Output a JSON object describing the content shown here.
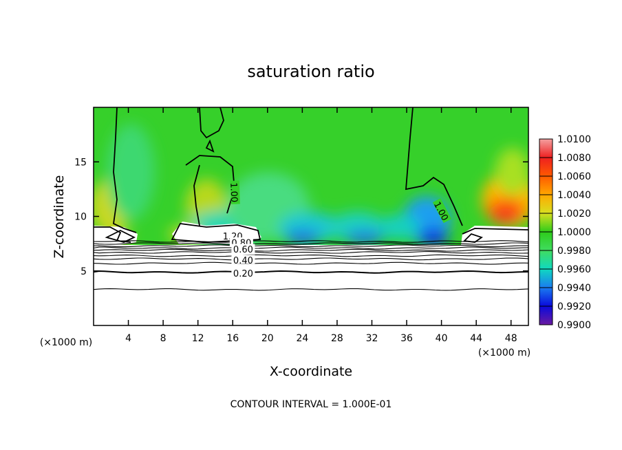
{
  "chart_data": {
    "type": "heatmap",
    "title": "saturation ratio",
    "xlabel": "X-coordinate",
    "ylabel": "Z-coordinate",
    "x_unit": "(×1000 m)",
    "z_unit": "(×1000 m)",
    "xlim": [
      0,
      50
    ],
    "ylim": [
      0,
      20
    ],
    "x_ticks": [
      4,
      8,
      12,
      16,
      20,
      24,
      28,
      32,
      36,
      40,
      44,
      48
    ],
    "y_ticks": [
      5,
      10,
      15
    ],
    "note": "CONTOUR INTERVAL = 1.000E-01",
    "colorbar": {
      "min": 0.99,
      "max": 1.01,
      "labels": [
        "1.0100",
        "1.0080",
        "1.0060",
        "1.0040",
        "1.0020",
        "1.0000",
        "0.9980",
        "0.9960",
        "0.9940",
        "0.9920",
        "0.9900"
      ],
      "colors": [
        "#f4a0a0",
        "#ee2020",
        "#ff5a00",
        "#ffa800",
        "#d8e020",
        "#2ecc1a",
        "#40dc60",
        "#10d8c0",
        "#1a7cf0",
        "#0a0adc",
        "#6a1aa0"
      ]
    },
    "contour_labels": [
      {
        "text": "1.00",
        "x": 16.2,
        "z": 12.2
      },
      {
        "text": "1.00",
        "x": 40.0,
        "z": 10.5
      },
      {
        "text": "1.20",
        "x": 16.0,
        "z": 8.2
      },
      {
        "text": "0.80",
        "x": 17.0,
        "z": 7.6
      },
      {
        "text": "0.60",
        "x": 17.2,
        "z": 7.0
      },
      {
        "text": "0.40",
        "x": 17.2,
        "z": 6.0
      },
      {
        "text": "0.20",
        "x": 17.2,
        "z": 4.8
      }
    ],
    "contour_levels_below": [
      3.3,
      4.9,
      5.7,
      6.1,
      6.4,
      6.7,
      6.9,
      7.1,
      7.3,
      7.5,
      7.7
    ],
    "grid": false
  }
}
